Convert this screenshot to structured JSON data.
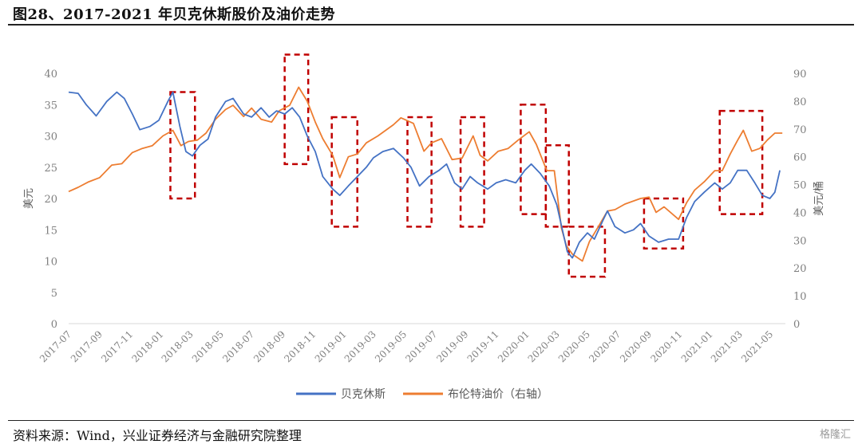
{
  "figure": {
    "title": "图28、2017-2021 年贝克休斯股价及油价走势",
    "source": "资料来源：Wind，兴业证券经济与金融研究院整理",
    "watermark": "格隆汇"
  },
  "colors": {
    "bkr": "#4472C4",
    "brent": "#ED7D31",
    "highlight": "#C00000",
    "axis_text": "#7f7f7f"
  },
  "chart_data": {
    "type": "line",
    "title": "",
    "ylabel": "美元",
    "y2label": "美元/桶",
    "ylim": [
      0,
      40
    ],
    "y2lim": [
      0,
      90
    ],
    "yticks": [
      0,
      5,
      10,
      15,
      20,
      25,
      30,
      35,
      40
    ],
    "y2ticks": [
      0,
      10,
      20,
      30,
      40,
      50,
      60,
      70,
      80,
      90
    ],
    "xlim": [
      "2017-07-01",
      "2021-05-31"
    ],
    "xticks": [
      "2017-07",
      "2017-09",
      "2017-11",
      "2018-01",
      "2018-03",
      "2018-05",
      "2018-07",
      "2018-09",
      "2018-11",
      "2019-01",
      "2019-03",
      "2019-05",
      "2019-07",
      "2019-09",
      "2019-11",
      "2020-01",
      "2020-03",
      "2020-05",
      "2020-07",
      "2020-09",
      "2020-11",
      "2021-01",
      "2021-03",
      "2021-05"
    ],
    "legend_position": "bottom",
    "grid": false,
    "series": [
      {
        "name": "贝克休斯",
        "axis": "left",
        "color": "#4472C4",
        "points": [
          [
            "2017-07-01",
            37.0
          ],
          [
            "2017-07-20",
            36.8
          ],
          [
            "2017-08-05",
            35.0
          ],
          [
            "2017-08-25",
            33.2
          ],
          [
            "2017-09-15",
            35.5
          ],
          [
            "2017-10-05",
            37.0
          ],
          [
            "2017-10-20",
            36.0
          ],
          [
            "2017-11-05",
            33.5
          ],
          [
            "2017-11-20",
            31.0
          ],
          [
            "2017-12-10",
            31.5
          ],
          [
            "2017-12-28",
            32.5
          ],
          [
            "2018-01-15",
            35.5
          ],
          [
            "2018-01-25",
            37.0
          ],
          [
            "2018-02-08",
            31.5
          ],
          [
            "2018-02-20",
            27.5
          ],
          [
            "2018-03-05",
            26.8
          ],
          [
            "2018-03-20",
            28.5
          ],
          [
            "2018-04-05",
            29.5
          ],
          [
            "2018-04-20",
            33.0
          ],
          [
            "2018-05-10",
            35.5
          ],
          [
            "2018-05-25",
            36.0
          ],
          [
            "2018-06-15",
            33.5
          ],
          [
            "2018-07-01",
            33.0
          ],
          [
            "2018-07-20",
            34.5
          ],
          [
            "2018-08-05",
            33.0
          ],
          [
            "2018-08-20",
            34.0
          ],
          [
            "2018-09-05",
            33.5
          ],
          [
            "2018-09-20",
            34.5
          ],
          [
            "2018-10-05",
            33.0
          ],
          [
            "2018-10-20",
            30.0
          ],
          [
            "2018-11-05",
            27.5
          ],
          [
            "2018-11-20",
            23.5
          ],
          [
            "2018-12-10",
            21.5
          ],
          [
            "2018-12-24",
            20.5
          ],
          [
            "2019-01-10",
            22.0
          ],
          [
            "2019-01-28",
            23.5
          ],
          [
            "2019-02-15",
            25.0
          ],
          [
            "2019-03-01",
            26.5
          ],
          [
            "2019-03-20",
            27.5
          ],
          [
            "2019-04-10",
            28.0
          ],
          [
            "2019-04-30",
            26.5
          ],
          [
            "2019-05-15",
            25.0
          ],
          [
            "2019-06-01",
            22.0
          ],
          [
            "2019-06-20",
            23.5
          ],
          [
            "2019-07-10",
            24.5
          ],
          [
            "2019-07-25",
            25.5
          ],
          [
            "2019-08-10",
            22.5
          ],
          [
            "2019-08-25",
            21.5
          ],
          [
            "2019-09-10",
            23.5
          ],
          [
            "2019-09-25",
            22.5
          ],
          [
            "2019-10-15",
            21.5
          ],
          [
            "2019-11-01",
            22.5
          ],
          [
            "2019-11-20",
            23.0
          ],
          [
            "2019-12-10",
            22.5
          ],
          [
            "2019-12-28",
            24.5
          ],
          [
            "2020-01-10",
            25.5
          ],
          [
            "2020-01-28",
            24.0
          ],
          [
            "2020-02-15",
            22.0
          ],
          [
            "2020-03-01",
            19.0
          ],
          [
            "2020-03-12",
            15.0
          ],
          [
            "2020-03-22",
            11.5
          ],
          [
            "2020-04-01",
            10.5
          ],
          [
            "2020-04-15",
            13.0
          ],
          [
            "2020-05-01",
            14.5
          ],
          [
            "2020-05-15",
            13.5
          ],
          [
            "2020-06-01",
            16.5
          ],
          [
            "2020-06-10",
            18.0
          ],
          [
            "2020-06-25",
            15.5
          ],
          [
            "2020-07-15",
            14.5
          ],
          [
            "2020-08-01",
            15.0
          ],
          [
            "2020-08-15",
            16.0
          ],
          [
            "2020-09-01",
            14.0
          ],
          [
            "2020-09-20",
            13.0
          ],
          [
            "2020-10-10",
            13.5
          ],
          [
            "2020-10-30",
            13.5
          ],
          [
            "2020-11-15",
            17.0
          ],
          [
            "2020-12-01",
            19.5
          ],
          [
            "2020-12-20",
            21.0
          ],
          [
            "2021-01-10",
            22.5
          ],
          [
            "2021-01-25",
            21.5
          ],
          [
            "2021-02-10",
            22.5
          ],
          [
            "2021-02-25",
            24.5
          ],
          [
            "2021-03-15",
            24.5
          ],
          [
            "2021-03-31",
            22.5
          ],
          [
            "2021-04-15",
            20.5
          ],
          [
            "2021-04-30",
            20.0
          ],
          [
            "2021-05-10",
            21.0
          ],
          [
            "2021-05-20",
            24.5
          ]
        ]
      },
      {
        "name": "布伦特油价（右轴）",
        "axis": "right",
        "color": "#ED7D31",
        "points": [
          [
            "2017-07-01",
            47.5
          ],
          [
            "2017-07-20",
            49.0
          ],
          [
            "2017-08-10",
            51.0
          ],
          [
            "2017-09-01",
            52.5
          ],
          [
            "2017-09-25",
            57.0
          ],
          [
            "2017-10-15",
            57.5
          ],
          [
            "2017-11-05",
            61.5
          ],
          [
            "2017-11-25",
            63.0
          ],
          [
            "2017-12-15",
            64.0
          ],
          [
            "2018-01-05",
            67.5
          ],
          [
            "2018-01-25",
            69.5
          ],
          [
            "2018-02-10",
            64.0
          ],
          [
            "2018-02-25",
            65.5
          ],
          [
            "2018-03-15",
            66.0
          ],
          [
            "2018-04-01",
            68.5
          ],
          [
            "2018-04-20",
            73.5
          ],
          [
            "2018-05-10",
            77.0
          ],
          [
            "2018-05-25",
            78.5
          ],
          [
            "2018-06-15",
            74.5
          ],
          [
            "2018-07-01",
            77.5
          ],
          [
            "2018-07-20",
            73.5
          ],
          [
            "2018-08-10",
            72.5
          ],
          [
            "2018-08-25",
            76.5
          ],
          [
            "2018-09-15",
            78.5
          ],
          [
            "2018-10-03",
            85.0
          ],
          [
            "2018-10-20",
            80.0
          ],
          [
            "2018-11-05",
            72.5
          ],
          [
            "2018-11-20",
            66.5
          ],
          [
            "2018-12-10",
            60.5
          ],
          [
            "2018-12-24",
            52.5
          ],
          [
            "2019-01-10",
            60.0
          ],
          [
            "2019-01-28",
            61.0
          ],
          [
            "2019-02-15",
            65.0
          ],
          [
            "2019-03-10",
            67.5
          ],
          [
            "2019-04-10",
            71.5
          ],
          [
            "2019-04-25",
            74.0
          ],
          [
            "2019-05-20",
            72.0
          ],
          [
            "2019-06-10",
            62.0
          ],
          [
            "2019-06-25",
            65.0
          ],
          [
            "2019-07-15",
            66.5
          ],
          [
            "2019-08-05",
            59.0
          ],
          [
            "2019-08-25",
            59.5
          ],
          [
            "2019-09-16",
            67.5
          ],
          [
            "2019-09-30",
            60.5
          ],
          [
            "2019-10-15",
            58.5
          ],
          [
            "2019-11-05",
            62.0
          ],
          [
            "2019-11-25",
            63.0
          ],
          [
            "2019-12-15",
            66.0
          ],
          [
            "2020-01-06",
            69.0
          ],
          [
            "2020-01-20",
            64.5
          ],
          [
            "2020-02-10",
            55.0
          ],
          [
            "2020-02-25",
            55.0
          ],
          [
            "2020-03-10",
            34.5
          ],
          [
            "2020-03-20",
            28.0
          ],
          [
            "2020-04-01",
            25.0
          ],
          [
            "2020-04-21",
            22.5
          ],
          [
            "2020-05-05",
            29.5
          ],
          [
            "2020-05-25",
            35.5
          ],
          [
            "2020-06-10",
            40.5
          ],
          [
            "2020-06-25",
            41.0
          ],
          [
            "2020-07-15",
            43.0
          ],
          [
            "2020-08-15",
            45.0
          ],
          [
            "2020-09-01",
            45.5
          ],
          [
            "2020-09-15",
            40.0
          ],
          [
            "2020-10-01",
            42.0
          ],
          [
            "2020-10-30",
            37.5
          ],
          [
            "2020-11-15",
            43.5
          ],
          [
            "2020-12-01",
            48.0
          ],
          [
            "2020-12-20",
            51.0
          ],
          [
            "2021-01-10",
            55.0
          ],
          [
            "2021-01-25",
            55.0
          ],
          [
            "2021-02-10",
            61.0
          ],
          [
            "2021-02-25",
            66.0
          ],
          [
            "2021-03-08",
            69.5
          ],
          [
            "2021-03-25",
            62.0
          ],
          [
            "2021-04-10",
            63.0
          ],
          [
            "2021-04-25",
            66.0
          ],
          [
            "2021-05-10",
            68.5
          ],
          [
            "2021-05-25",
            68.5
          ]
        ]
      }
    ],
    "highlight_boxes": [
      {
        "from": "2018-01-20",
        "to": "2018-03-10",
        "y_low": 20.0,
        "y_high": 37.0
      },
      {
        "from": "2018-09-05",
        "to": "2018-10-22",
        "y_low": 25.5,
        "y_high": 43.0
      },
      {
        "from": "2018-12-08",
        "to": "2019-01-28",
        "y_low": 15.5,
        "y_high": 33.0
      },
      {
        "from": "2019-05-08",
        "to": "2019-06-25",
        "y_low": 15.5,
        "y_high": 33.0
      },
      {
        "from": "2019-08-22",
        "to": "2019-10-08",
        "y_low": 15.5,
        "y_high": 33.0
      },
      {
        "from": "2019-12-20",
        "to": "2020-02-08",
        "y_low": 17.5,
        "y_high": 35.0
      },
      {
        "from": "2020-02-08",
        "to": "2020-03-25",
        "y_low": 15.5,
        "y_high": 28.5
      },
      {
        "from": "2020-03-25",
        "to": "2020-06-05",
        "y_low": 7.5,
        "y_high": 15.5
      },
      {
        "from": "2020-08-22",
        "to": "2020-11-08",
        "y_low": 12.0,
        "y_high": 20.0
      },
      {
        "from": "2021-01-20",
        "to": "2021-04-15",
        "y_low": 17.5,
        "y_high": 34.0
      }
    ]
  },
  "legend": {
    "bkr": "贝克休斯",
    "brent": "布伦特油价（右轴）"
  }
}
